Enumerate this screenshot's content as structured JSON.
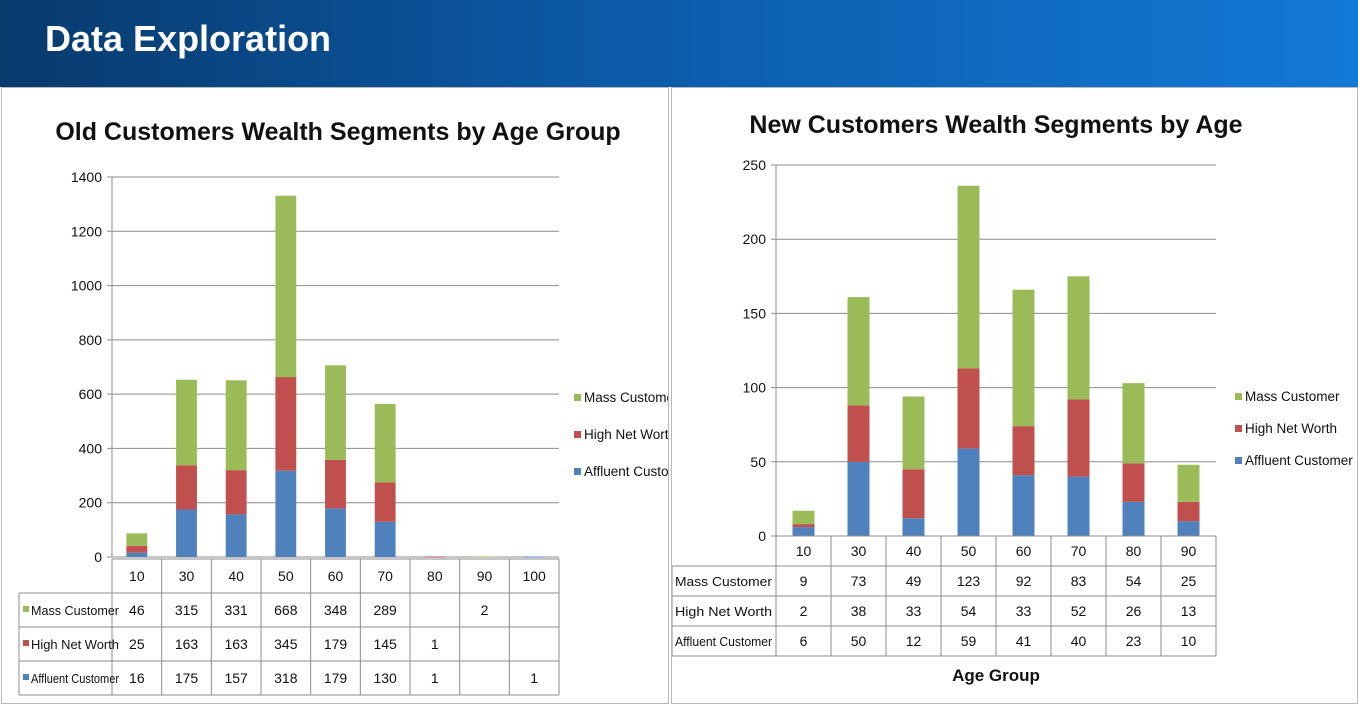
{
  "page": {
    "title": "Data Exploration"
  },
  "colors": {
    "mass": "#9bbb59",
    "high": "#c0504d",
    "affluent": "#4f81bd",
    "grid": "#8c8c8c",
    "banner_start": "#083a6c",
    "banner_end": "#1279d6"
  },
  "chart_data": [
    {
      "type": "bar",
      "stacked": true,
      "title": "Old Customers Wealth Segments by Age Group",
      "xlabel": "",
      "ylabel": "",
      "categories": [
        "10",
        "30",
        "40",
        "50",
        "60",
        "70",
        "80",
        "90",
        "100"
      ],
      "ylim": [
        0,
        1400
      ],
      "yticks": [
        0,
        200,
        400,
        600,
        800,
        1000,
        1200,
        1400
      ],
      "grid": true,
      "legend": "right",
      "data_table": true,
      "series": [
        {
          "name": "Affluent Customer",
          "values": [
            16,
            175,
            157,
            318,
            179,
            130,
            1,
            null,
            1
          ]
        },
        {
          "name": "High Net Worth",
          "values": [
            25,
            163,
            163,
            345,
            179,
            145,
            1,
            null,
            null
          ]
        },
        {
          "name": "Mass Customer",
          "values": [
            46,
            315,
            331,
            668,
            348,
            289,
            null,
            2,
            null
          ]
        }
      ]
    },
    {
      "type": "bar",
      "stacked": true,
      "title": "New Customers Wealth Segments by Age",
      "xlabel": "Age Group",
      "ylabel": "",
      "categories": [
        "10",
        "30",
        "40",
        "50",
        "60",
        "70",
        "80",
        "90"
      ],
      "ylim": [
        0,
        250
      ],
      "yticks": [
        0,
        50,
        100,
        150,
        200,
        250
      ],
      "grid": true,
      "legend": "right",
      "data_table": true,
      "series": [
        {
          "name": "Affluent Customer",
          "values": [
            6,
            50,
            12,
            59,
            41,
            40,
            23,
            10
          ]
        },
        {
          "name": "High Net Worth",
          "values": [
            2,
            38,
            33,
            54,
            33,
            52,
            26,
            13
          ]
        },
        {
          "name": "Mass Customer",
          "values": [
            9,
            73,
            49,
            123,
            92,
            83,
            54,
            25
          ]
        }
      ]
    }
  ]
}
